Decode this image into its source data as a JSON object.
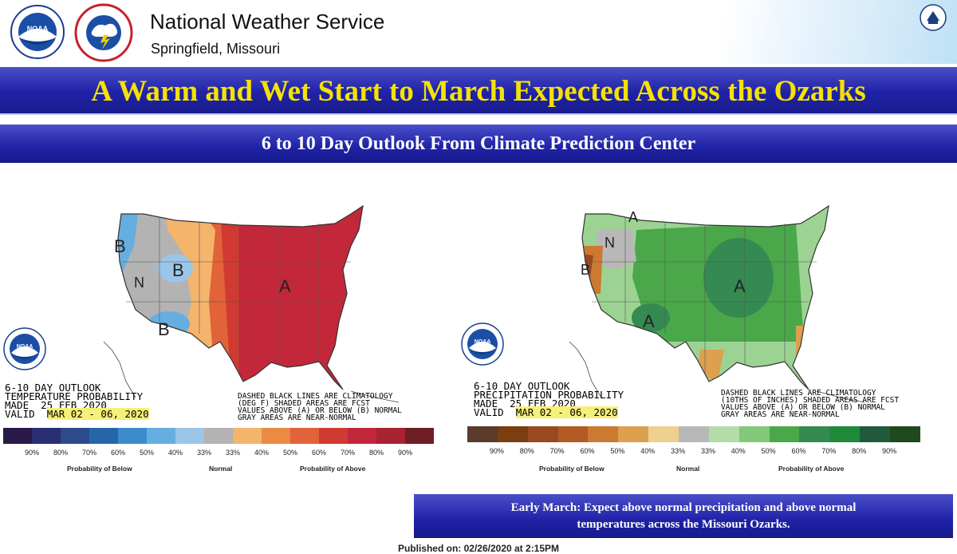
{
  "header": {
    "organization": "National Weather Service",
    "office": "Springfield, Missouri"
  },
  "banner": {
    "title": "A Warm and Wet Start to March Expected Across the Ozarks"
  },
  "subheader": {
    "title": "6 to 10 Day Outlook From Climate Prediction Center"
  },
  "temperature_map": {
    "title_lines": [
      "6-10 DAY OUTLOOK",
      "TEMPERATURE PROBABILITY",
      "MADE  25 FEB 2020"
    ],
    "valid_label": "VALID",
    "valid_dates": "MAR 02 - 06, 2020",
    "note_lines": [
      "DASHED BLACK LINES ARE CLIMATOLOGY",
      "(DEG F) SHADED AREAS ARE FCST",
      "VALUES ABOVE (A) OR BELOW (B) NORMAL",
      "GRAY AREAS ARE NEAR-NORMAL"
    ],
    "legend_colors": [
      "#2a1a4a",
      "#2a2e72",
      "#2d4a8c",
      "#2566a8",
      "#3c8bcc",
      "#66aee0",
      "#9cc6e8",
      "#b3b3b3",
      "#f4b46c",
      "#ea8a44",
      "#e2623a",
      "#d03a32",
      "#c2283a",
      "#a82232",
      "#6e1e26"
    ],
    "legend_pcts": [
      "90%",
      "80%",
      "70%",
      "60%",
      "50%",
      "40%",
      "33%",
      "33%",
      "40%",
      "50%",
      "60%",
      "70%",
      "80%",
      "90%"
    ],
    "below_label": "Probability of Below",
    "normal_label": "Normal",
    "above_label": "Probability of Above"
  },
  "precipitation_map": {
    "title_lines": [
      "6-10 DAY OUTLOOK",
      "PRECIPITATION PROBABILITY",
      "MADE  25 FEB 2020"
    ],
    "valid_label": "VALID",
    "valid_dates": "MAR 02 - 06, 2020",
    "note_lines": [
      "DASHED BLACK LINES ARE CLIMATOLOGY",
      "(10THS OF INCHES) SHADED AREAS ARE FCST",
      "VALUES ABOVE (A) OR BELOW (B) NORMAL",
      "GRAY AREAS ARE NEAR-NORMAL"
    ],
    "legend_colors": [
      "#5a3a2a",
      "#7a3e10",
      "#9a4a20",
      "#b45a24",
      "#cc7a32",
      "#dca04e",
      "#f0d090",
      "#b8b8b8",
      "#b4dca8",
      "#82c878",
      "#4aa84a",
      "#358a52",
      "#1f8a3a",
      "#215a3a",
      "#1f4a1f"
    ],
    "legend_pcts": [
      "90%",
      "80%",
      "70%",
      "60%",
      "50%",
      "40%",
      "33%",
      "33%",
      "40%",
      "50%",
      "60%",
      "70%",
      "80%",
      "90%"
    ],
    "below_label": "Probability of Below",
    "normal_label": "Normal",
    "above_label": "Probability of Above"
  },
  "summary": {
    "line1": "Early March:  Expect above normal precipitation and above normal",
    "line2": "temperatures across the Missouri Ozarks."
  },
  "published": "Published on: 02/26/2020 at 2:15PM",
  "icons": [
    "noaa-logo-icon",
    "nws-logo-icon",
    "doc-seal-icon"
  ],
  "colors": {
    "banner_blue": "#1f22a6",
    "banner_text": "#f5e200"
  }
}
